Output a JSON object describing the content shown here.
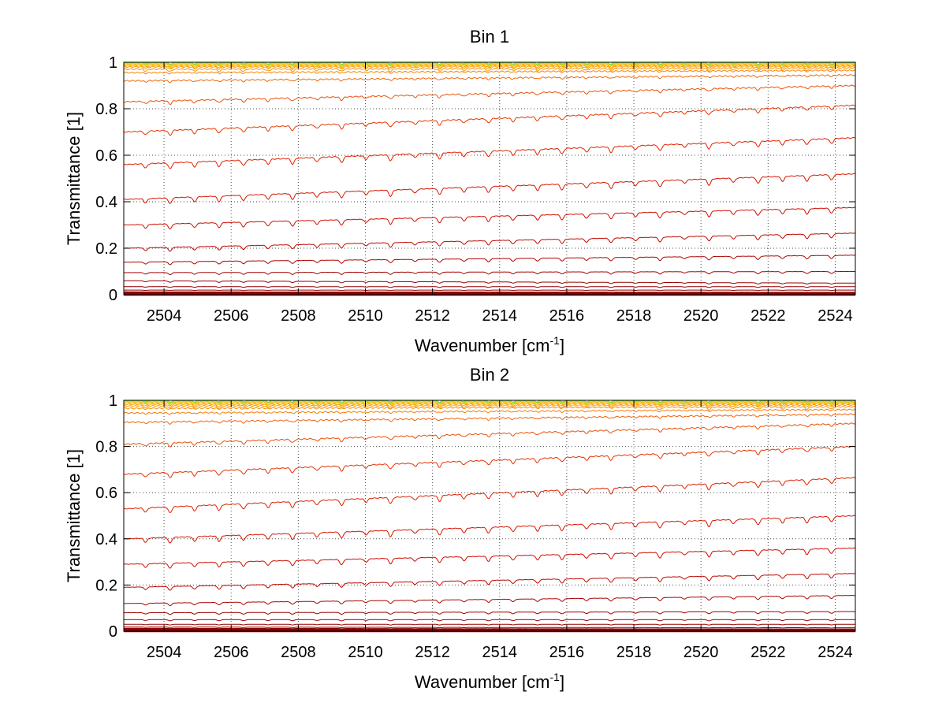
{
  "chart_data": [
    {
      "type": "line",
      "title": "Bin 1",
      "xlabel": "Wavenumber [cm",
      "xlabel_sup": "-1",
      "xlabel_end": "]",
      "ylabel": "Transmittance [1]",
      "xlim": [
        2502.8,
        2524.6
      ],
      "ylim": [
        0,
        1
      ],
      "xticks": [
        2504,
        2506,
        2508,
        2510,
        2512,
        2514,
        2516,
        2518,
        2520,
        2522,
        2524
      ],
      "yticks": [
        0,
        0.2,
        0.4,
        0.6,
        0.8,
        1
      ],
      "xtick_labels": [
        "2504",
        "2506",
        "2508",
        "2510",
        "2512",
        "2514",
        "2516",
        "2518",
        "2520",
        "2522",
        "2524"
      ],
      "ytick_labels": [
        "0",
        "0.2",
        "0.4",
        "0.6",
        "0.8",
        "1"
      ],
      "grid": true,
      "series_count": 40,
      "start_levels": [
        0.0,
        0.003,
        0.006,
        0.01,
        0.02,
        0.035,
        0.06,
        0.095,
        0.14,
        0.2,
        0.3,
        0.41,
        0.56,
        0.7,
        0.83,
        0.92,
        0.955,
        0.97,
        0.98,
        0.985,
        0.99,
        0.993,
        0.995,
        0.997,
        0.998,
        0.999,
        1.0
      ],
      "end_levels": [
        0.0,
        0.002,
        0.004,
        0.008,
        0.02,
        0.035,
        0.05,
        0.1,
        0.17,
        0.265,
        0.375,
        0.52,
        0.675,
        0.815,
        0.9,
        0.945,
        0.965,
        0.975,
        0.982,
        0.987,
        0.991,
        0.994,
        0.996,
        0.997,
        0.998,
        0.999,
        1.0
      ]
    },
    {
      "type": "line",
      "title": "Bin 2",
      "xlabel": "Wavenumber [cm",
      "xlabel_sup": "-1",
      "xlabel_end": "]",
      "ylabel": "Transmittance [1]",
      "xlim": [
        2502.8,
        2524.6
      ],
      "ylim": [
        0,
        1
      ],
      "xticks": [
        2504,
        2506,
        2508,
        2510,
        2512,
        2514,
        2516,
        2518,
        2520,
        2522,
        2524
      ],
      "yticks": [
        0,
        0.2,
        0.4,
        0.6,
        0.8,
        1
      ],
      "xtick_labels": [
        "2504",
        "2506",
        "2508",
        "2510",
        "2512",
        "2514",
        "2516",
        "2518",
        "2520",
        "2522",
        "2524"
      ],
      "ytick_labels": [
        "0",
        "0.2",
        "0.4",
        "0.6",
        "0.8",
        "1"
      ],
      "grid": true,
      "series_count": 40,
      "start_levels": [
        0.0,
        0.003,
        0.006,
        0.01,
        0.018,
        0.03,
        0.05,
        0.08,
        0.12,
        0.19,
        0.29,
        0.4,
        0.53,
        0.68,
        0.81,
        0.905,
        0.945,
        0.965,
        0.975,
        0.982,
        0.988,
        0.992,
        0.995,
        0.997,
        0.998,
        0.999,
        1.0
      ],
      "end_levels": [
        0.0,
        0.002,
        0.004,
        0.007,
        0.015,
        0.03,
        0.05,
        0.085,
        0.155,
        0.25,
        0.36,
        0.5,
        0.665,
        0.8,
        0.9,
        0.94,
        0.96,
        0.972,
        0.98,
        0.986,
        0.99,
        0.993,
        0.995,
        0.997,
        0.998,
        0.999,
        1.0
      ]
    }
  ]
}
